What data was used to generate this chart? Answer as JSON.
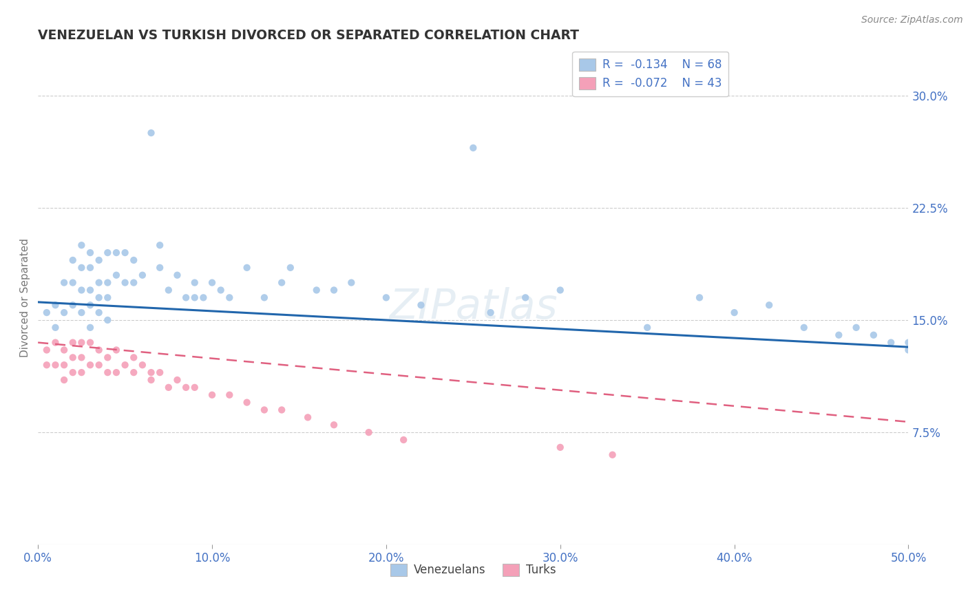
{
  "title": "VENEZUELAN VS TURKISH DIVORCED OR SEPARATED CORRELATION CHART",
  "source": "Source: ZipAtlas.com",
  "ylabel": "Divorced or Separated",
  "xlim": [
    0.0,
    0.5
  ],
  "ylim": [
    0.0,
    0.33
  ],
  "yticks": [
    0.075,
    0.15,
    0.225,
    0.3
  ],
  "ytick_labels": [
    "7.5%",
    "15.0%",
    "22.5%",
    "30.0%"
  ],
  "xticks": [
    0.0,
    0.1,
    0.2,
    0.3,
    0.4,
    0.5
  ],
  "xtick_labels": [
    "0.0%",
    "10.0%",
    "20.0%",
    "30.0%",
    "40.0%",
    "50.0%"
  ],
  "blue_color": "#a8c8e8",
  "pink_color": "#f4a0b8",
  "blue_line_color": "#2166ac",
  "pink_line_color": "#e06080",
  "grid_color": "#cccccc",
  "background_color": "#ffffff",
  "title_color": "#333333",
  "axis_label_color": "#777777",
  "legend_R1": "R =  -0.134",
  "legend_N1": "N = 68",
  "legend_R2": "R =  -0.072",
  "legend_N2": "N = 43",
  "venezuelan_x": [
    0.005,
    0.01,
    0.01,
    0.015,
    0.015,
    0.02,
    0.02,
    0.02,
    0.025,
    0.025,
    0.025,
    0.025,
    0.03,
    0.03,
    0.03,
    0.03,
    0.03,
    0.035,
    0.035,
    0.035,
    0.035,
    0.04,
    0.04,
    0.04,
    0.04,
    0.045,
    0.045,
    0.05,
    0.05,
    0.055,
    0.055,
    0.06,
    0.065,
    0.07,
    0.07,
    0.075,
    0.08,
    0.085,
    0.09,
    0.09,
    0.095,
    0.1,
    0.105,
    0.11,
    0.12,
    0.13,
    0.14,
    0.145,
    0.16,
    0.17,
    0.18,
    0.2,
    0.22,
    0.25,
    0.26,
    0.28,
    0.3,
    0.35,
    0.38,
    0.4,
    0.42,
    0.44,
    0.46,
    0.47,
    0.48,
    0.49,
    0.5,
    0.5
  ],
  "venezuelan_y": [
    0.155,
    0.16,
    0.145,
    0.175,
    0.155,
    0.19,
    0.175,
    0.16,
    0.2,
    0.185,
    0.17,
    0.155,
    0.195,
    0.185,
    0.17,
    0.16,
    0.145,
    0.19,
    0.175,
    0.165,
    0.155,
    0.195,
    0.175,
    0.165,
    0.15,
    0.195,
    0.18,
    0.195,
    0.175,
    0.19,
    0.175,
    0.18,
    0.275,
    0.2,
    0.185,
    0.17,
    0.18,
    0.165,
    0.175,
    0.165,
    0.165,
    0.175,
    0.17,
    0.165,
    0.185,
    0.165,
    0.175,
    0.185,
    0.17,
    0.17,
    0.175,
    0.165,
    0.16,
    0.265,
    0.155,
    0.165,
    0.17,
    0.145,
    0.165,
    0.155,
    0.16,
    0.145,
    0.14,
    0.145,
    0.14,
    0.135,
    0.13,
    0.135
  ],
  "turkish_x": [
    0.005,
    0.005,
    0.01,
    0.01,
    0.015,
    0.015,
    0.015,
    0.02,
    0.02,
    0.02,
    0.025,
    0.025,
    0.025,
    0.03,
    0.03,
    0.035,
    0.035,
    0.04,
    0.04,
    0.045,
    0.045,
    0.05,
    0.055,
    0.055,
    0.06,
    0.065,
    0.065,
    0.07,
    0.075,
    0.08,
    0.085,
    0.09,
    0.1,
    0.11,
    0.12,
    0.13,
    0.14,
    0.155,
    0.17,
    0.19,
    0.21,
    0.3,
    0.33
  ],
  "turkish_y": [
    0.13,
    0.12,
    0.135,
    0.12,
    0.13,
    0.12,
    0.11,
    0.135,
    0.125,
    0.115,
    0.135,
    0.125,
    0.115,
    0.135,
    0.12,
    0.13,
    0.12,
    0.125,
    0.115,
    0.13,
    0.115,
    0.12,
    0.125,
    0.115,
    0.12,
    0.115,
    0.11,
    0.115,
    0.105,
    0.11,
    0.105,
    0.105,
    0.1,
    0.1,
    0.095,
    0.09,
    0.09,
    0.085,
    0.08,
    0.075,
    0.07,
    0.065,
    0.06
  ],
  "blue_trend_x0": 0.0,
  "blue_trend_x1": 0.5,
  "blue_trend_y0": 0.162,
  "blue_trend_y1": 0.132,
  "pink_trend_x0": 0.0,
  "pink_trend_x1": 0.5,
  "pink_trend_y0": 0.135,
  "pink_trend_y1": 0.082
}
